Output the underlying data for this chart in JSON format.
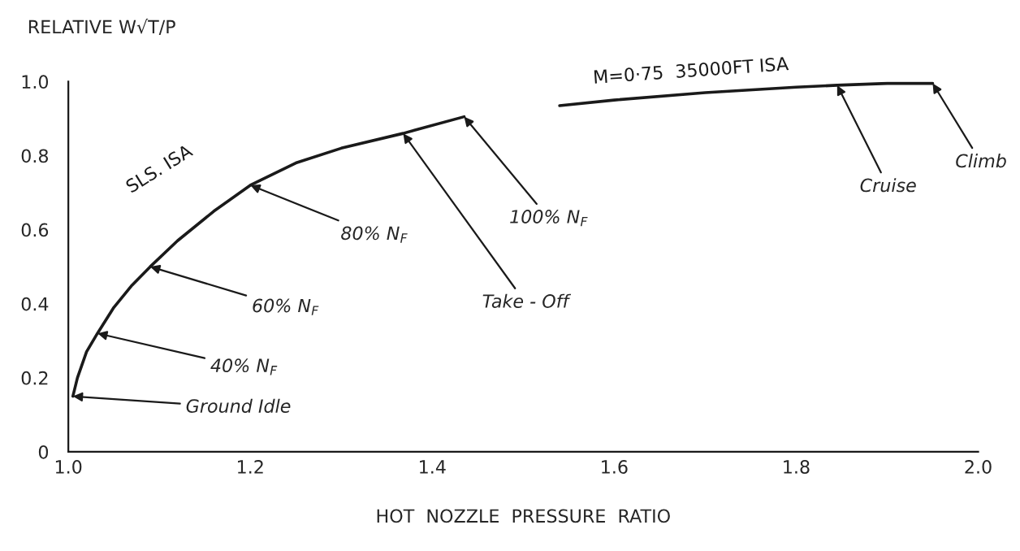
{
  "chart_data": {
    "type": "line",
    "xlabel": "HOT  NOZZLE  PRESSURE  RATIO",
    "ylabel": "RELATIVE W√T/P",
    "series": [
      {
        "name": "SLS. ISA",
        "color": "#1a1a1a",
        "x": [
          1.005,
          1.01,
          1.02,
          1.032,
          1.05,
          1.07,
          1.09,
          1.12,
          1.16,
          1.2,
          1.25,
          1.3,
          1.368,
          1.435
        ],
        "values": [
          0.15,
          0.2,
          0.27,
          0.32,
          0.39,
          0.45,
          0.5,
          0.57,
          0.65,
          0.72,
          0.78,
          0.82,
          0.86,
          0.905
        ]
      },
      {
        "name": "M=0·75  35000FT ISA",
        "color": "#1a1a1a",
        "x": [
          1.54,
          1.6,
          1.7,
          1.8,
          1.845,
          1.9,
          1.95
        ],
        "values": [
          0.935,
          0.95,
          0.97,
          0.985,
          0.99,
          0.995,
          0.995
        ]
      }
    ],
    "annotations": [
      {
        "text": "Ground Idle",
        "x": 1.005,
        "y": 0.15
      },
      {
        "text": "40% N$_{F}$",
        "x": 1.032,
        "y": 0.32
      },
      {
        "text": "60% N$_{F}$",
        "x": 1.09,
        "y": 0.5
      },
      {
        "text": "80% N$_{F}$",
        "x": 1.2,
        "y": 0.72
      },
      {
        "text": "Take - Off",
        "x": 1.368,
        "y": 0.86
      },
      {
        "text": "100% N$_{F}$",
        "x": 1.435,
        "y": 0.905
      },
      {
        "text": "Cruise",
        "x": 1.845,
        "y": 0.99
      },
      {
        "text": "Climb",
        "x": 1.95,
        "y": 0.995
      }
    ],
    "xlim": [
      1.0,
      2.0
    ],
    "ylim": [
      0,
      1.0
    ],
    "xticks": [
      {
        "value": 1,
        "label": "1.0"
      },
      1.2,
      1.4,
      1.6,
      1.8,
      {
        "value": 2,
        "label": "2.0"
      }
    ],
    "yticks": [
      0,
      0.2,
      0.4,
      0.6,
      0.8,
      {
        "value": 1,
        "label": "1.0"
      }
    ],
    "grid": false,
    "legend": false,
    "marker": "none",
    "line_style": "solid"
  }
}
